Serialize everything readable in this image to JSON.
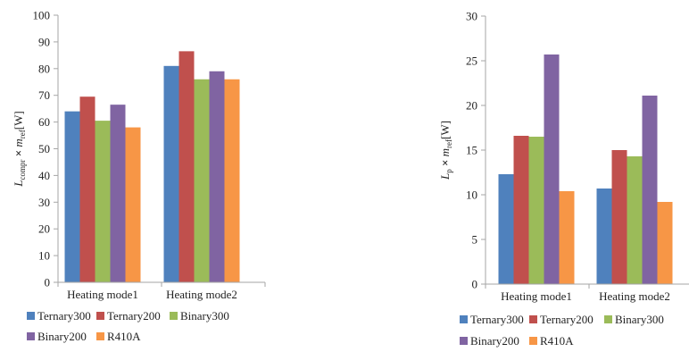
{
  "chart_data": [
    {
      "type": "bar",
      "categories": [
        "Heating mode1",
        "Heating mode2"
      ],
      "series": [
        {
          "name": "Ternary300",
          "values": [
            64,
            81
          ]
        },
        {
          "name": "Ternary200",
          "values": [
            69.5,
            86.5
          ]
        },
        {
          "name": "Binary300",
          "values": [
            60.5,
            76
          ]
        },
        {
          "name": "Binary200",
          "values": [
            66.5,
            79
          ]
        },
        {
          "name": "R410A",
          "values": [
            58,
            76
          ]
        }
      ],
      "ylabel": {
        "symbol": "L",
        "subscript": "compr",
        "times": "×",
        "symbol2": "m",
        "subscript2": "ref",
        "unit": "[W]"
      },
      "ylim": [
        0,
        100
      ],
      "yticks": [
        "0",
        "10",
        "20",
        "30",
        "40",
        "50",
        "60",
        "70",
        "80",
        "90",
        "100"
      ],
      "grid": false,
      "legend_position": "bottom"
    },
    {
      "type": "bar",
      "categories": [
        "Heating mode1",
        "Heating mode2"
      ],
      "series": [
        {
          "name": "Ternary300",
          "values": [
            12.3,
            10.7
          ]
        },
        {
          "name": "Ternary200",
          "values": [
            16.6,
            15
          ]
        },
        {
          "name": "Binary300",
          "values": [
            16.5,
            14.3
          ]
        },
        {
          "name": "Binary200",
          "values": [
            25.7,
            21.1
          ]
        },
        {
          "name": "R410A",
          "values": [
            10.4,
            9.2
          ]
        }
      ],
      "ylabel": {
        "symbol": "L",
        "subscript": "p",
        "times": "×",
        "symbol2": "m",
        "subscript2": "ref",
        "unit": "[W]"
      },
      "ylim": [
        0,
        30
      ],
      "yticks": [
        "0",
        "5",
        "10",
        "15",
        "20",
        "25",
        "30"
      ],
      "grid": false,
      "legend_position": "bottom"
    }
  ],
  "colors": [
    "#4f81bd",
    "#c0504d",
    "#9bbb59",
    "#8064a2",
    "#f79646"
  ],
  "axis_color": "#a6a6a6"
}
